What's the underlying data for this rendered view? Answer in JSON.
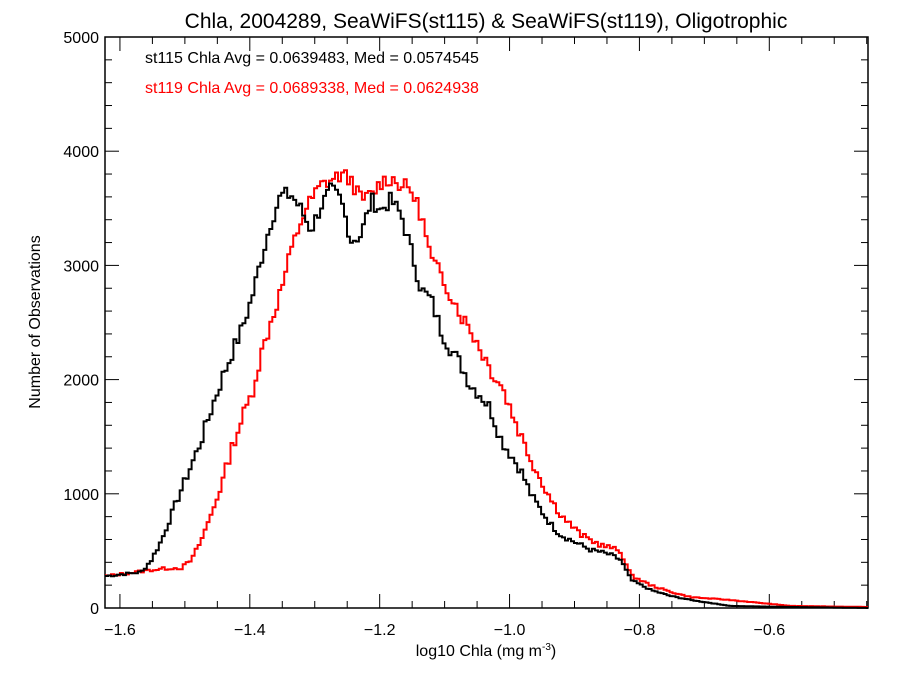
{
  "chart_data": {
    "type": "line",
    "style": "histogram-step",
    "title": "Chla, 2004289, SeaWiFS(st115) & SeaWiFS(st119), Oligotrophic",
    "xlabel": "log10 Chla (mg m",
    "xlabel_superscript": "-3",
    "xlabel_suffix": ")",
    "ylabel": "Number of Observations",
    "xlim": [
      -1.623,
      -0.448
    ],
    "ylim": [
      0,
      5000
    ],
    "x_ticks": [
      -1.6,
      -1.4,
      -1.2,
      -1.0,
      -0.8,
      -0.6
    ],
    "x_tick_labels": [
      "−1.6",
      "−1.4",
      "−1.2",
      "−1.0",
      "−0.8",
      "−0.6"
    ],
    "y_ticks": [
      0,
      1000,
      2000,
      3000,
      4000,
      5000
    ],
    "y_tick_labels": [
      "0",
      "1000",
      "2000",
      "3000",
      "4000",
      "5000"
    ],
    "grid": false,
    "annotations": [
      {
        "text": "st115 Chla Avg = 0.0639483, Med = 0.0574545",
        "color": "#000000"
      },
      {
        "text": "st119 Chla Avg = 0.0689338, Med = 0.0624938",
        "color": "#ff0000"
      }
    ],
    "series": [
      {
        "name": "st115",
        "color": "#000000",
        "x": [
          -1.623,
          -1.569,
          -1.554,
          -1.538,
          -1.523,
          -1.508,
          -1.492,
          -1.477,
          -1.462,
          -1.446,
          -1.431,
          -1.415,
          -1.4,
          -1.385,
          -1.369,
          -1.354,
          -1.338,
          -1.323,
          -1.308,
          -1.292,
          -1.277,
          -1.262,
          -1.246,
          -1.231,
          -1.215,
          -1.2,
          -1.185,
          -1.169,
          -1.154,
          -1.138,
          -1.123,
          -1.108,
          -1.092,
          -1.077,
          -1.062,
          -1.046,
          -1.031,
          -1.015,
          -1.0,
          -0.985,
          -0.969,
          -0.954,
          -0.938,
          -0.923,
          -0.908,
          -0.892,
          -0.877,
          -0.862,
          -0.846,
          -0.831,
          -0.815,
          -0.785,
          -0.754,
          -0.723,
          -0.662,
          -0.569,
          -0.448
        ],
        "y": [
          280,
          315,
          420,
          595,
          815,
          1034,
          1253,
          1471,
          1734,
          1996,
          2215,
          2434,
          2697,
          3047,
          3398,
          3616,
          3616,
          3485,
          3310,
          3529,
          3660,
          3573,
          3222,
          3266,
          3573,
          3485,
          3573,
          3441,
          3135,
          2785,
          2697,
          2434,
          2259,
          2128,
          1953,
          1865,
          1734,
          1471,
          1340,
          1208,
          989,
          858,
          727,
          639,
          595,
          551,
          508,
          490,
          464,
          420,
          245,
          158,
          105,
          70,
          18,
          9,
          0
        ]
      },
      {
        "name": "st119",
        "color": "#ff0000",
        "x": [
          -1.623,
          -1.554,
          -1.523,
          -1.508,
          -1.492,
          -1.477,
          -1.462,
          -1.446,
          -1.431,
          -1.415,
          -1.4,
          -1.385,
          -1.369,
          -1.354,
          -1.338,
          -1.323,
          -1.308,
          -1.292,
          -1.277,
          -1.262,
          -1.246,
          -1.231,
          -1.215,
          -1.2,
          -1.185,
          -1.169,
          -1.154,
          -1.138,
          -1.123,
          -1.108,
          -1.092,
          -1.077,
          -1.062,
          -1.046,
          -1.031,
          -1.015,
          -1.0,
          -0.985,
          -0.969,
          -0.954,
          -0.938,
          -0.923,
          -0.908,
          -0.892,
          -0.877,
          -0.862,
          -0.846,
          -0.831,
          -0.815,
          -0.785,
          -0.754,
          -0.723,
          -0.662,
          -0.569,
          -0.448
        ],
        "y": [
          280,
          333,
          350,
          350,
          420,
          595,
          815,
          1077,
          1384,
          1646,
          1865,
          2215,
          2522,
          2785,
          3135,
          3398,
          3573,
          3704,
          3748,
          3792,
          3748,
          3573,
          3616,
          3730,
          3765,
          3704,
          3660,
          3441,
          3047,
          2916,
          2741,
          2566,
          2434,
          2259,
          2084,
          1953,
          1734,
          1515,
          1296,
          1121,
          946,
          815,
          727,
          639,
          595,
          551,
          529,
          490,
          285,
          200,
          140,
          95,
          70,
          18,
          9
        ]
      }
    ]
  }
}
